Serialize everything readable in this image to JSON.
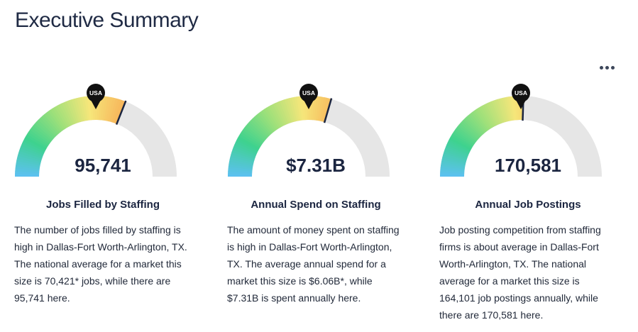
{
  "header": {
    "title": "Executive Summary"
  },
  "menu": {
    "icon": "more-horizontal-icon"
  },
  "colors": {
    "gauge_track": "#e6e6e6",
    "gradient": [
      "#5cc1ef",
      "#3ed28e",
      "#9ee07a",
      "#f6e67a",
      "#f7b45a"
    ],
    "text": "#1b2540"
  },
  "cards": [
    {
      "value": "95,741",
      "marker_label": "USA",
      "level_fraction": 0.62,
      "title": "Jobs Filled by Staffing",
      "description": "The number of jobs filled by staffing is\nhigh in Dallas-Fort Worth-Arlington, TX.\nThe national average for a market this\nsize is 70,421* jobs, while there are\n95,741 here."
    },
    {
      "value": "$7.31B",
      "marker_label": "USA",
      "level_fraction": 0.59,
      "title": "Annual Spend on Staffing",
      "description": "The amount of money spent on staffing\nis high in Dallas-Fort Worth-Arlington,\nTX. The average annual spend for a\nmarket this size is $6.06B*, while\n$7.31B is spent annually here."
    },
    {
      "value": "170,581",
      "marker_label": "USA",
      "level_fraction": 0.51,
      "title": "Annual Job Postings",
      "description": "Job posting competition from staffing\nfirms is about average in Dallas-Fort\nWorth-Arlington, TX. The national\naverage for a market this size is\n164,101 job postings annually, while\nthere are 170,581 here."
    }
  ]
}
